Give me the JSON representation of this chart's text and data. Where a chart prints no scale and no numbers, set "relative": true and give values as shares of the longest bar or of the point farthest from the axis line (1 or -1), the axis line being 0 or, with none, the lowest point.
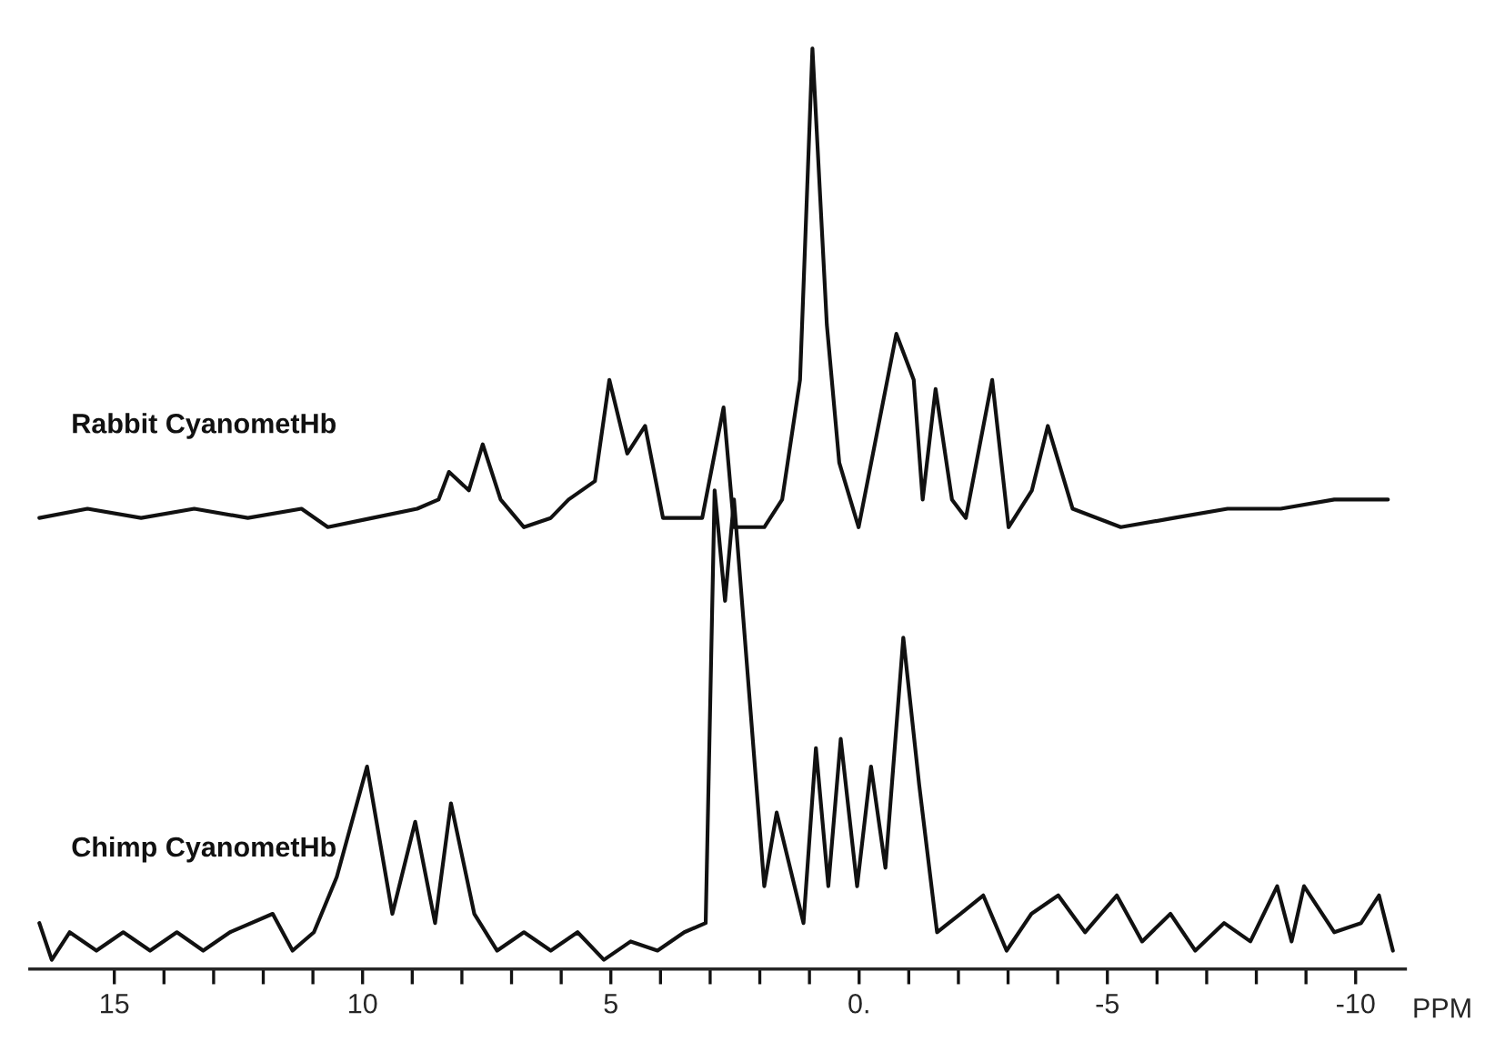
{
  "chart_data": {
    "type": "line",
    "relative": true,
    "xlabel": "PPM",
    "xlim": [
      16.7,
      -11.0
    ],
    "xticks": [
      15,
      {
        "value": 14,
        "label": null
      },
      {
        "value": 13,
        "label": null
      },
      {
        "value": 12,
        "label": null
      },
      {
        "value": 11,
        "label": null
      },
      10,
      {
        "value": 9,
        "label": null
      },
      {
        "value": 8,
        "label": null
      },
      {
        "value": 7,
        "label": null
      },
      {
        "value": 6,
        "label": null
      },
      5,
      {
        "value": 4,
        "label": null
      },
      {
        "value": 3,
        "label": null
      },
      {
        "value": 2,
        "label": null
      },
      {
        "value": 1,
        "label": null
      },
      {
        "value": 0,
        "label": "0."
      },
      {
        "value": -1,
        "label": null
      },
      {
        "value": -2,
        "label": null
      },
      {
        "value": -3,
        "label": null
      },
      {
        "value": -4,
        "label": null
      },
      {
        "value": -5,
        "label": "-5"
      },
      {
        "value": -6,
        "label": null
      },
      {
        "value": -7,
        "label": null
      },
      {
        "value": -8,
        "label": null
      },
      {
        "value": -9,
        "label": null
      },
      {
        "value": -10,
        "label": "-10"
      }
    ],
    "grid": false,
    "legend": false,
    "line_style": "solid",
    "marker": "none",
    "tick_labels": "x",
    "series": [
      {
        "name": "Rabbit CyanometHb",
        "color": "#111111",
        "x": [
          16.51,
          15.54,
          14.46,
          13.39,
          12.31,
          11.23,
          10.7,
          9.8,
          8.9,
          8.47,
          8.26,
          7.86,
          7.58,
          7.22,
          6.75,
          6.21,
          5.85,
          5.32,
          5.03,
          4.67,
          4.31,
          3.95,
          3.63,
          3.16,
          2.73,
          2.52,
          1.91,
          1.55,
          1.19,
          0.94,
          0.65,
          0.4,
          0.01,
          -0.75,
          -1.1,
          -1.28,
          -1.54,
          -1.87,
          -2.15,
          -2.68,
          -3.01,
          -3.48,
          -3.8,
          -4.3,
          -5.27,
          -6.34,
          -7.42,
          -8.49,
          -9.57,
          -10.65
        ],
        "values": [
          0.49,
          0.5,
          0.49,
          0.5,
          0.49,
          0.5,
          0.48,
          0.49,
          0.5,
          0.51,
          0.54,
          0.52,
          0.57,
          0.51,
          0.48,
          0.49,
          0.51,
          0.53,
          0.64,
          0.56,
          0.59,
          0.49,
          0.49,
          0.49,
          0.61,
          0.48,
          0.48,
          0.51,
          0.64,
          1.0,
          0.7,
          0.55,
          0.48,
          0.69,
          0.64,
          0.51,
          0.63,
          0.51,
          0.49,
          0.64,
          0.48,
          0.52,
          0.59,
          0.5,
          0.48,
          0.49,
          0.5,
          0.5,
          0.51,
          0.51
        ]
      },
      {
        "name": "Chimp CyanometHb",
        "color": "#111111",
        "x": [
          16.51,
          16.26,
          15.9,
          15.36,
          14.82,
          14.28,
          13.74,
          13.21,
          12.67,
          11.81,
          11.41,
          10.98,
          10.52,
          9.91,
          9.4,
          8.94,
          8.54,
          8.22,
          7.75,
          7.29,
          6.75,
          6.21,
          5.67,
          5.14,
          4.6,
          4.06,
          3.52,
          3.09,
          2.91,
          2.7,
          2.52,
          1.91,
          1.66,
          1.12,
          0.87,
          0.62,
          0.37,
          0.04,
          -0.24,
          -0.53,
          -0.89,
          -1.21,
          -1.57,
          -2.04,
          -2.5,
          -2.97,
          -3.47,
          -4.01,
          -4.55,
          -5.19,
          -5.7,
          -6.27,
          -6.77,
          -7.35,
          -7.88,
          -8.42,
          -8.71,
          -8.96,
          -9.57,
          -10.11,
          -10.47,
          -10.75
        ],
        "values": [
          0.05,
          0.01,
          0.04,
          0.02,
          0.04,
          0.02,
          0.04,
          0.02,
          0.04,
          0.06,
          0.02,
          0.04,
          0.1,
          0.22,
          0.06,
          0.16,
          0.05,
          0.18,
          0.06,
          0.02,
          0.04,
          0.02,
          0.04,
          0.01,
          0.03,
          0.02,
          0.04,
          0.05,
          0.52,
          0.4,
          0.51,
          0.09,
          0.17,
          0.05,
          0.24,
          0.09,
          0.25,
          0.09,
          0.22,
          0.11,
          0.36,
          0.2,
          0.04,
          0.06,
          0.08,
          0.02,
          0.06,
          0.08,
          0.04,
          0.08,
          0.03,
          0.06,
          0.02,
          0.05,
          0.03,
          0.09,
          0.03,
          0.09,
          0.04,
          0.05,
          0.08,
          0.02
        ]
      }
    ]
  }
}
